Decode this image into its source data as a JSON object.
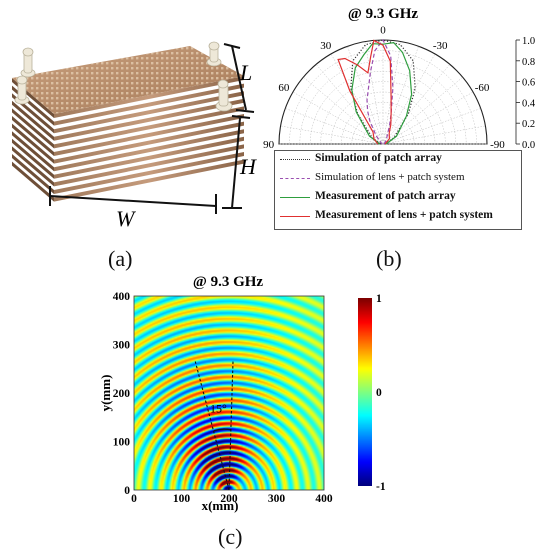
{
  "panels": {
    "a": {
      "label": "(a)",
      "dims": {
        "L": "L",
        "H": "H",
        "W": "W"
      }
    },
    "b": {
      "label": "(b)"
    },
    "c": {
      "label": "(c)"
    }
  },
  "chart_data": [
    {
      "type": "polar",
      "title": "@ 9.3 GHz",
      "angle_ticks": [
        "0",
        "30",
        "-30",
        "60",
        "-60",
        "90",
        "-90"
      ],
      "radial_ticks": [
        "0.0",
        "0.2",
        "0.4",
        "0.6",
        "0.8",
        "1.0"
      ],
      "rlim": [
        0,
        1
      ],
      "grid": true,
      "legend_position": "bottom",
      "series": [
        {
          "name": "Simulation of patch array",
          "color": "#333333",
          "style": "dotted",
          "angles": [
            -90,
            -60,
            -40,
            -30,
            -20,
            -10,
            0,
            10,
            20,
            30,
            40,
            60,
            90
          ],
          "values": [
            0.02,
            0.12,
            0.38,
            0.62,
            0.85,
            0.97,
            1.0,
            0.97,
            0.85,
            0.62,
            0.38,
            0.12,
            0.02
          ]
        },
        {
          "name": "Simulation of lens + patch system",
          "color": "#9a4fb0",
          "style": "dashed",
          "angles": [
            -90,
            -40,
            -25,
            -20,
            -15,
            -10,
            -5,
            0,
            5,
            10,
            20,
            25,
            30,
            40,
            90
          ],
          "values": [
            0.01,
            0.05,
            0.1,
            0.18,
            0.3,
            0.55,
            0.85,
            1.0,
            0.9,
            0.7,
            0.45,
            0.35,
            0.25,
            0.1,
            0.01
          ]
        },
        {
          "name": "Measurement of patch array",
          "color": "#2e9e3e",
          "style": "solid",
          "angles": [
            -90,
            -60,
            -40,
            -30,
            -20,
            -12,
            -6,
            0,
            6,
            12,
            20,
            30,
            40,
            60,
            90
          ],
          "values": [
            0.03,
            0.15,
            0.35,
            0.55,
            0.75,
            0.9,
            0.98,
            0.96,
            0.97,
            0.88,
            0.78,
            0.6,
            0.4,
            0.15,
            0.03
          ]
        },
        {
          "name": "Measurement of lens + patch system",
          "color": "#e03030",
          "style": "solid",
          "angles": [
            -90,
            -50,
            -30,
            -22,
            -15,
            -10,
            -5,
            0,
            5,
            8,
            12,
            18,
            24,
            28,
            32,
            40,
            60,
            90
          ],
          "values": [
            0.02,
            0.08,
            0.12,
            0.2,
            0.3,
            0.45,
            0.8,
            0.95,
            1.0,
            0.85,
            0.7,
            0.8,
            0.9,
            0.92,
            0.6,
            0.15,
            0.1,
            0.05
          ]
        }
      ]
    },
    {
      "type": "heatmap",
      "title": "@ 9.3 GHz",
      "xlabel": "x(mm)",
      "ylabel": "y(mm)",
      "xlim": [
        0,
        400
      ],
      "ylim": [
        0,
        400
      ],
      "x_ticks": [
        "0",
        "100",
        "200",
        "300",
        "400"
      ],
      "y_ticks": [
        "0",
        "100",
        "200",
        "300",
        "400"
      ],
      "colorbar": {
        "min": -1,
        "max": 1,
        "ticks": [
          "1",
          "0",
          "-1"
        ]
      },
      "annotation": "15°",
      "source_point": [
        200,
        0
      ],
      "beam_tilt_deg": 15
    }
  ]
}
